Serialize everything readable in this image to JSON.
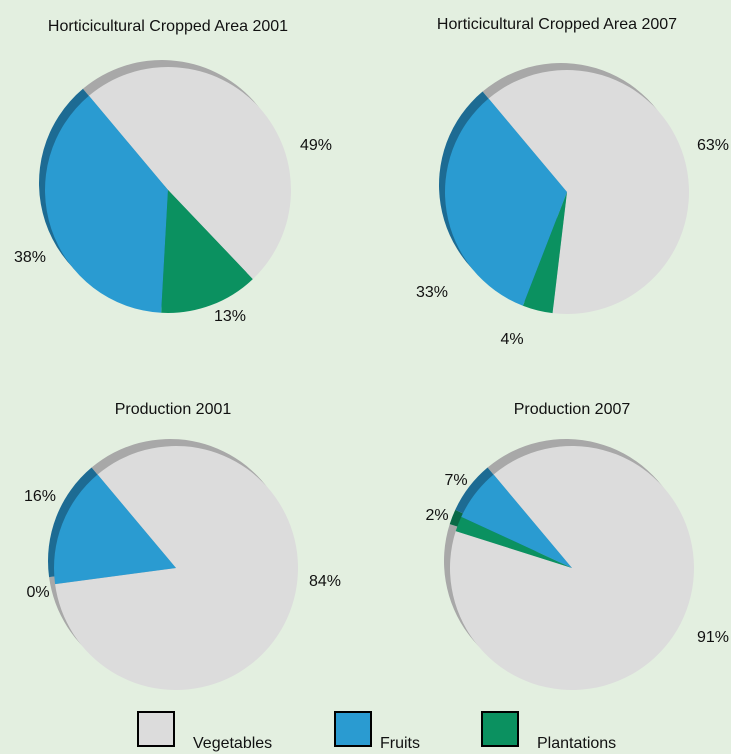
{
  "chart_data": [
    {
      "type": "pie",
      "title": "Horticicultural Cropped Area 2001",
      "categories": [
        "Vegetables",
        "Fruits",
        "Plantations"
      ],
      "values": [
        49,
        38,
        13
      ],
      "colors": [
        "#dcdcdc",
        "#2a9bd1",
        "#0b9160"
      ]
    },
    {
      "type": "pie",
      "title": "Horticicultural Cropped Area 2007",
      "categories": [
        "Vegetables",
        "Fruits",
        "Plantations"
      ],
      "values": [
        63,
        33,
        4
      ],
      "colors": [
        "#dcdcdc",
        "#2a9bd1",
        "#0b9160"
      ]
    },
    {
      "type": "pie",
      "title": "Production 2001",
      "categories": [
        "Vegetables",
        "Fruits",
        "Plantations"
      ],
      "values": [
        84,
        16,
        0
      ],
      "colors": [
        "#dcdcdc",
        "#2a9bd1",
        "#0b9160"
      ]
    },
    {
      "type": "pie",
      "title": "Production 2007",
      "categories": [
        "Vegetables",
        "Fruits",
        "Plantations"
      ],
      "values": [
        91,
        7,
        2
      ],
      "colors": [
        "#dcdcdc",
        "#2a9bd1",
        "#0b9160"
      ]
    }
  ]
}
